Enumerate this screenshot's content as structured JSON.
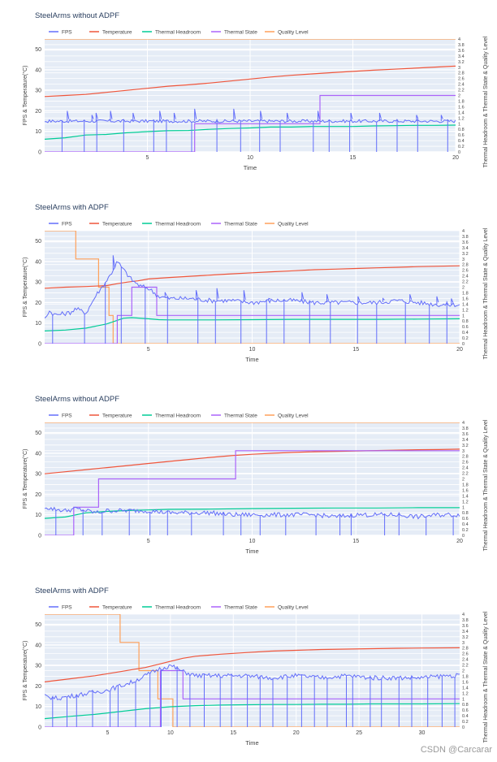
{
  "colors": {
    "fps": "#636efa",
    "temperature": "#ef553b",
    "thermal_headroom": "#00cc96",
    "thermal_state": "#ab63fa",
    "quality_level": "#ffa15a",
    "plot_bg": "#e5ecf6",
    "grid": "#ffffff",
    "text": "#444444",
    "title": "#2a3f5f"
  },
  "watermark": "CSDN @Carcarar",
  "chart_data": [
    {
      "type": "line",
      "title": "SteelArms without ADPF",
      "xlabel": "Time",
      "ylabel": "FPS & Temperature(°C)",
      "y2label": "Thermal Headroom & Thermal State & Quality Level",
      "xlim": [
        0,
        20
      ],
      "ylim": [
        0,
        55
      ],
      "y2lim": [
        0,
        4
      ],
      "xticks": [
        5,
        10,
        15,
        20
      ],
      "yticks": [
        0,
        10,
        20,
        30,
        40,
        50
      ],
      "y2ticks": [
        0,
        0.2,
        0.4,
        0.6,
        0.8,
        1,
        1.2,
        1.4,
        1.6,
        1.8,
        2,
        2.2,
        2.4,
        2.6,
        2.8,
        3,
        3.2,
        3.4,
        3.6,
        3.8,
        4
      ],
      "legend": [
        "FPS",
        "Temperature",
        "Thermal Headroom",
        "Thermal State",
        "Quality Level"
      ],
      "series": {
        "fps": {
          "base": 15,
          "noise": 1.5,
          "spikes": [
            1.1,
            2.3,
            2.5,
            3.2,
            4.3,
            5.6,
            6.3,
            7.3,
            9.2,
            10.5,
            11.8,
            13.3,
            14.9,
            16.3,
            18.1,
            19.3
          ],
          "spike_heights": [
            20,
            18,
            19,
            20,
            19,
            20,
            19,
            21,
            21,
            20,
            19,
            20,
            19,
            19,
            18,
            18
          ]
        },
        "temperature": {
          "x": [
            0,
            1,
            2,
            3,
            4,
            5,
            6,
            7,
            8,
            9,
            10,
            11,
            12,
            13,
            14,
            15,
            16,
            17,
            18,
            19,
            20
          ],
          "y": [
            27,
            27.5,
            28,
            29,
            30,
            31,
            32,
            32.7,
            33.5,
            34.5,
            35.5,
            36.5,
            37.3,
            38,
            38.6,
            39.2,
            39.8,
            40.3,
            40.8,
            41.3,
            41.8
          ]
        },
        "thermal_headroom": {
          "x": [
            0,
            1,
            2,
            3,
            4,
            5,
            6,
            7,
            8,
            9,
            10,
            11,
            12,
            13,
            14,
            15,
            16,
            17,
            18,
            19,
            20
          ],
          "y": [
            0.45,
            0.5,
            0.6,
            0.62,
            0.68,
            0.72,
            0.75,
            0.76,
            0.8,
            0.83,
            0.85,
            0.88,
            0.88,
            0.9,
            0.9,
            0.9,
            0.92,
            0.93,
            0.94,
            0.94,
            0.95
          ]
        },
        "thermal_state": {
          "x": [
            0,
            7.3,
            7.3,
            13.4,
            13.4,
            20
          ],
          "y": [
            0,
            0,
            1,
            1,
            2,
            2
          ]
        },
        "quality_level": {
          "x": [
            0,
            20
          ],
          "y": [
            4,
            4
          ]
        }
      }
    },
    {
      "type": "line",
      "title": "SteelArms with ADPF",
      "xlabel": "Time",
      "ylabel": "FPS & Temperature(°C)",
      "y2label": "Thermal Headroom & Thermal State & Quality Level",
      "xlim": [
        0,
        20
      ],
      "ylim": [
        0,
        55
      ],
      "y2lim": [
        0,
        4
      ],
      "xticks": [
        5,
        10,
        15,
        20
      ],
      "yticks": [
        0,
        10,
        20,
        30,
        40,
        50
      ],
      "y2ticks": [
        0,
        0.2,
        0.4,
        0.6,
        0.8,
        1,
        1.2,
        1.4,
        1.6,
        1.8,
        2,
        2.2,
        2.4,
        2.6,
        2.8,
        3,
        3.2,
        3.4,
        3.6,
        3.8,
        4
      ],
      "legend": [
        "FPS",
        "Temperature",
        "Thermal Headroom",
        "Thermal State",
        "Quality Level"
      ],
      "series": {
        "fps": {
          "x": [
            0,
            0.2,
            0.5,
            1.2,
            1.5,
            2,
            2.5,
            2.8,
            3.2,
            3.5,
            3.8,
            4.2,
            4.6,
            5,
            5.5,
            6,
            7,
            8,
            9,
            10,
            11,
            12,
            13,
            14,
            15,
            16,
            17,
            18,
            19,
            20
          ],
          "y": [
            12,
            16,
            14,
            15,
            17,
            15,
            24,
            28,
            34,
            40,
            36,
            31,
            28,
            27,
            23,
            22,
            22,
            21,
            21,
            20,
            21,
            21,
            20,
            20,
            20,
            20,
            21,
            20,
            19,
            19
          ],
          "spikes": [
            3.3,
            5.8,
            7.3,
            8.3,
            9.6,
            10.8,
            12.4,
            13.6,
            15.1,
            16.3,
            17.6,
            18.9,
            19.6
          ],
          "spike_heights": [
            43,
            25,
            26,
            27,
            26,
            22,
            25,
            24,
            23,
            22,
            24,
            23,
            22
          ]
        },
        "temperature": {
          "x": [
            0,
            1,
            2,
            3,
            3.5,
            4,
            4.5,
            5,
            6,
            7,
            8,
            9,
            10,
            11,
            12,
            13,
            14,
            15,
            16,
            17,
            18,
            19,
            20
          ],
          "y": [
            27,
            27.5,
            27.8,
            28.3,
            29.2,
            30,
            30.6,
            31.5,
            32.2,
            32.8,
            33.4,
            34,
            34.5,
            35,
            35.5,
            36,
            36.3,
            36.6,
            36.9,
            37.2,
            37.5,
            37.7,
            37.9
          ]
        },
        "thermal_headroom": {
          "x": [
            0,
            1,
            2,
            3,
            3.4,
            3.8,
            4.2,
            5,
            5.5,
            6,
            8,
            10,
            12,
            14,
            16,
            18,
            20
          ],
          "y": [
            0.45,
            0.48,
            0.55,
            0.7,
            0.8,
            0.9,
            0.92,
            0.88,
            0.85,
            0.84,
            0.84,
            0.85,
            0.86,
            0.86,
            0.86,
            0.87,
            0.88
          ]
        },
        "thermal_state": {
          "x": [
            0,
            3.5,
            3.5,
            4.2,
            4.2,
            5.4,
            5.4,
            20
          ],
          "y": [
            0,
            0,
            1,
            1,
            2,
            2,
            1,
            1
          ]
        },
        "quality_level": {
          "x": [
            0,
            1.5,
            1.5,
            2.6,
            2.6,
            3.1,
            3.1,
            3.3,
            3.3,
            20
          ],
          "y": [
            4,
            4,
            3,
            3,
            2,
            2,
            1,
            1,
            0,
            0
          ]
        }
      }
    },
    {
      "type": "line",
      "title": "SteelArms without ADPF",
      "xlabel": "Time",
      "ylabel": "FPS & Temperature(°C)",
      "y2label": "Thermal Headroom & Thermal State & Quality Level",
      "xlim": [
        0,
        20
      ],
      "ylim": [
        0,
        55
      ],
      "y2lim": [
        0,
        4
      ],
      "xticks": [
        5,
        10,
        15,
        20
      ],
      "yticks": [
        0,
        10,
        20,
        30,
        40,
        50
      ],
      "y2ticks": [
        0,
        0.2,
        0.4,
        0.6,
        0.8,
        1,
        1.2,
        1.4,
        1.6,
        1.8,
        2,
        2.2,
        2.4,
        2.6,
        2.8,
        3,
        3.2,
        3.4,
        3.6,
        3.8,
        4
      ],
      "legend": [
        "FPS",
        "Temperature",
        "Thermal Headroom",
        "Thermal State",
        "Quality Level"
      ],
      "series": {
        "fps": {
          "x": [
            0,
            0.3,
            1,
            1.5,
            2,
            2.5,
            3,
            4,
            5,
            6,
            7,
            8,
            9,
            10,
            11,
            12,
            13,
            14,
            15,
            16,
            17,
            18,
            19,
            20
          ],
          "y": [
            14,
            13,
            12,
            13,
            12,
            11,
            12,
            12,
            12,
            11,
            11,
            11,
            10,
            10,
            10,
            10,
            10,
            9,
            10,
            10,
            10,
            9,
            10,
            10
          ],
          "spikes": [],
          "spike_heights": []
        },
        "temperature": {
          "x": [
            0,
            1,
            2,
            3,
            4,
            5,
            6,
            7,
            8,
            9,
            10,
            11,
            12,
            13,
            14,
            15,
            16,
            17,
            18,
            19,
            20
          ],
          "y": [
            30,
            31,
            32,
            33,
            34,
            35,
            36,
            37,
            38,
            38.8,
            39.5,
            40,
            40.4,
            40.7,
            40.9,
            41.1,
            41.3,
            41.5,
            41.7,
            41.8,
            42
          ]
        },
        "thermal_headroom": {
          "x": [
            0,
            1,
            2,
            3,
            4,
            5,
            6,
            8,
            10,
            12,
            14,
            16,
            18,
            20
          ],
          "y": [
            0.6,
            0.65,
            0.8,
            0.85,
            0.88,
            0.9,
            0.92,
            0.93,
            0.95,
            0.96,
            0.97,
            0.97,
            0.98,
            0.98
          ]
        },
        "thermal_state": {
          "x": [
            0,
            1.4,
            1.4,
            2.6,
            2.6,
            9.2,
            9.2,
            20
          ],
          "y": [
            0,
            0,
            1,
            1,
            2,
            2,
            3,
            3
          ]
        },
        "quality_level": {
          "x": [
            0,
            20
          ],
          "y": [
            4,
            4
          ]
        }
      }
    },
    {
      "type": "line",
      "title": "SteelArms with ADPF",
      "xlabel": "Time",
      "ylabel": "FPS & Temperature(°C)",
      "y2label": "Thermal Headroom & Thermal State & Quality Level",
      "xlim": [
        0,
        33
      ],
      "ylim": [
        0,
        55
      ],
      "y2lim": [
        0,
        4
      ],
      "xticks": [
        5,
        10,
        15,
        20,
        25,
        30
      ],
      "yticks": [
        0,
        10,
        20,
        30,
        40,
        50
      ],
      "y2ticks": [
        0,
        0.2,
        0.4,
        0.6,
        0.8,
        1,
        1.2,
        1.4,
        1.6,
        1.8,
        2,
        2.2,
        2.4,
        2.6,
        2.8,
        3,
        3.2,
        3.4,
        3.6,
        3.8,
        4
      ],
      "legend": [
        "FPS",
        "Temperature",
        "Thermal Headroom",
        "Thermal State",
        "Quality Level"
      ],
      "series": {
        "fps": {
          "x": [
            0,
            1,
            2,
            3,
            4,
            5,
            6,
            7,
            8,
            9,
            10,
            11,
            12,
            14,
            16,
            18,
            20,
            22,
            24,
            26,
            28,
            30,
            32,
            33
          ],
          "y": [
            15,
            14,
            15,
            16,
            17,
            18,
            20,
            22,
            25,
            28,
            30,
            27,
            25,
            25,
            25,
            24,
            25,
            24,
            25,
            24,
            24,
            24,
            25,
            25
          ],
          "spikes": [],
          "spike_heights": []
        },
        "temperature": {
          "x": [
            0,
            2,
            4,
            6,
            7,
            8,
            9,
            10,
            11,
            12,
            14,
            16,
            18,
            20,
            22,
            24,
            26,
            28,
            30,
            33
          ],
          "y": [
            22,
            23.5,
            25,
            27,
            28,
            29,
            30.5,
            32,
            33.5,
            34.5,
            35.5,
            36.3,
            37,
            37.4,
            37.8,
            38,
            38.2,
            38.4,
            38.5,
            38.6
          ]
        },
        "thermal_headroom": {
          "x": [
            0,
            2,
            4,
            6,
            8,
            10,
            12,
            14,
            16,
            18,
            20,
            22,
            24,
            26,
            28,
            30,
            33
          ],
          "y": [
            0.3,
            0.38,
            0.45,
            0.55,
            0.65,
            0.72,
            0.76,
            0.78,
            0.79,
            0.8,
            0.8,
            0.81,
            0.81,
            0.82,
            0.82,
            0.82,
            0.83
          ]
        },
        "thermal_state": {
          "x": [
            0,
            9.2,
            9.2,
            11,
            11,
            33
          ],
          "y": [
            0,
            0,
            2,
            2,
            1,
            1
          ]
        },
        "quality_level": {
          "x": [
            0,
            6,
            6,
            7.5,
            7.5,
            9,
            9,
            10.2,
            10.2,
            33
          ],
          "y": [
            4,
            4,
            3,
            3,
            2,
            2,
            1,
            1,
            0,
            0
          ]
        }
      }
    }
  ]
}
